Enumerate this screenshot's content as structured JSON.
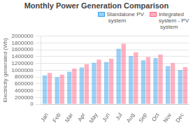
{
  "chart_data": {
    "type": "bar",
    "title": "Monthly Power Generation Comparison",
    "categories": [
      "Jan",
      "Feb",
      "Mar",
      "Apr",
      "May",
      "Jun",
      "Jul",
      "Aug",
      "Sep",
      "Oct",
      "Nov",
      "Dec"
    ],
    "series": [
      {
        "name": "Standalone PV\n system",
        "values": [
          850000,
          800000,
          960000,
          1080000,
          1220000,
          1240000,
          1630000,
          1420000,
          1290000,
          1360000,
          1120000,
          1010000
        ]
      },
      {
        "name": "Integrated\nsystem - PV\n system",
        "values": [
          920000,
          870000,
          1050000,
          1180000,
          1310000,
          1340000,
          1780000,
          1530000,
          1390000,
          1460000,
          1210000,
          1090000
        ]
      }
    ],
    "ylabel": "Electricity generated (Wh)",
    "ylim": [
      0,
      2000000
    ],
    "yticks": [
      0,
      200000,
      400000,
      600000,
      800000,
      1000000,
      1200000,
      1400000,
      1600000,
      1800000,
      2000000
    ],
    "grid": true,
    "legend": "upper right"
  }
}
